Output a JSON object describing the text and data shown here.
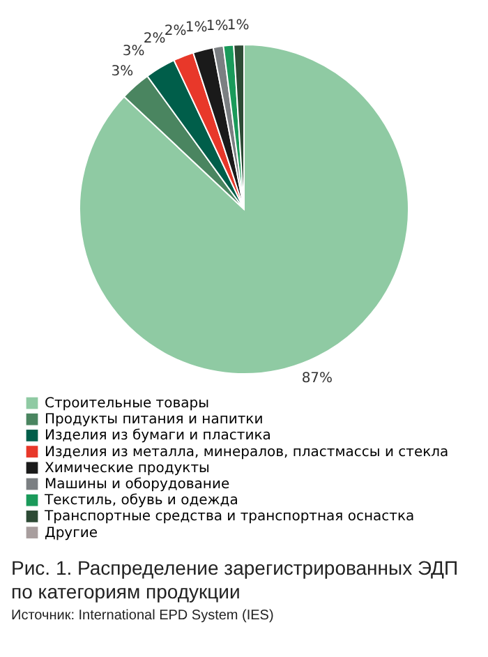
{
  "chart_data": {
    "type": "pie",
    "title": "Рис. 1. Распределение зарегистрированных ЭДП по категориям продукции",
    "categories": [
      "Строительные товары",
      "Продукты питания и напитки",
      "Изделия из бумаги и пластика",
      "Изделия из металла, минералов, пластмассы и стекла",
      "Химические продукты",
      "Машины и оборудование",
      "Текстиль, обувь и одежда",
      "Транспортные средства и транспортная оснастка",
      "Другие"
    ],
    "values": [
      87,
      3,
      3,
      2,
      2,
      1,
      1,
      1,
      0
    ],
    "colors": [
      "#8fcaa3",
      "#4a8560",
      "#005e4a",
      "#e8382a",
      "#1a1a1a",
      "#7b7f82",
      "#1a9a5a",
      "#2d4a35",
      "#a89e9e"
    ],
    "value_labels": [
      "87%",
      "3%",
      "3%",
      "2%",
      "2%",
      "1%",
      "1%",
      "1%",
      null
    ],
    "legend": "bottom left",
    "annotations": [
      "Источник: International EPD System (IES)"
    ]
  }
}
